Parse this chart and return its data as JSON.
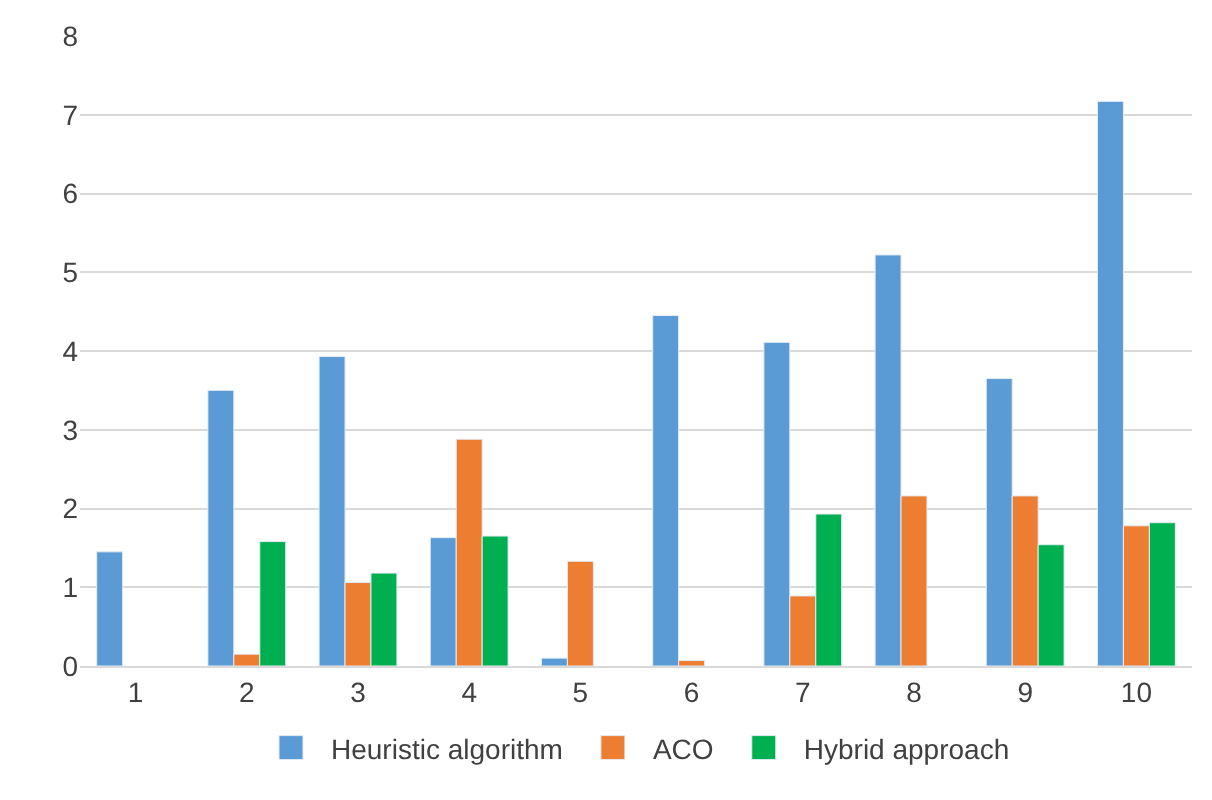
{
  "chart_data": {
    "type": "bar",
    "categories": [
      "1",
      "2",
      "3",
      "4",
      "5",
      "6",
      "7",
      "8",
      "9",
      "10"
    ],
    "series": [
      {
        "name": "Heuristic algorithm",
        "color": "#5b9bd5",
        "values": [
          1.45,
          3.5,
          3.93,
          1.63,
          0.1,
          4.45,
          4.11,
          5.22,
          3.65,
          7.17
        ]
      },
      {
        "name": "ACO",
        "color": "#ed7d31",
        "values": [
          null,
          0.15,
          1.06,
          2.88,
          1.33,
          0.07,
          0.89,
          2.16,
          2.16,
          1.78
        ]
      },
      {
        "name": "Hybrid approach",
        "color": "#00b050",
        "values": [
          null,
          1.58,
          1.18,
          1.65,
          null,
          null,
          1.93,
          null,
          1.54,
          1.82
        ]
      }
    ],
    "ylim": [
      0,
      8
    ],
    "yticks": [
      0,
      1,
      2,
      3,
      4,
      5,
      6,
      7,
      8
    ],
    "grid": "y",
    "legend": "bottom"
  }
}
